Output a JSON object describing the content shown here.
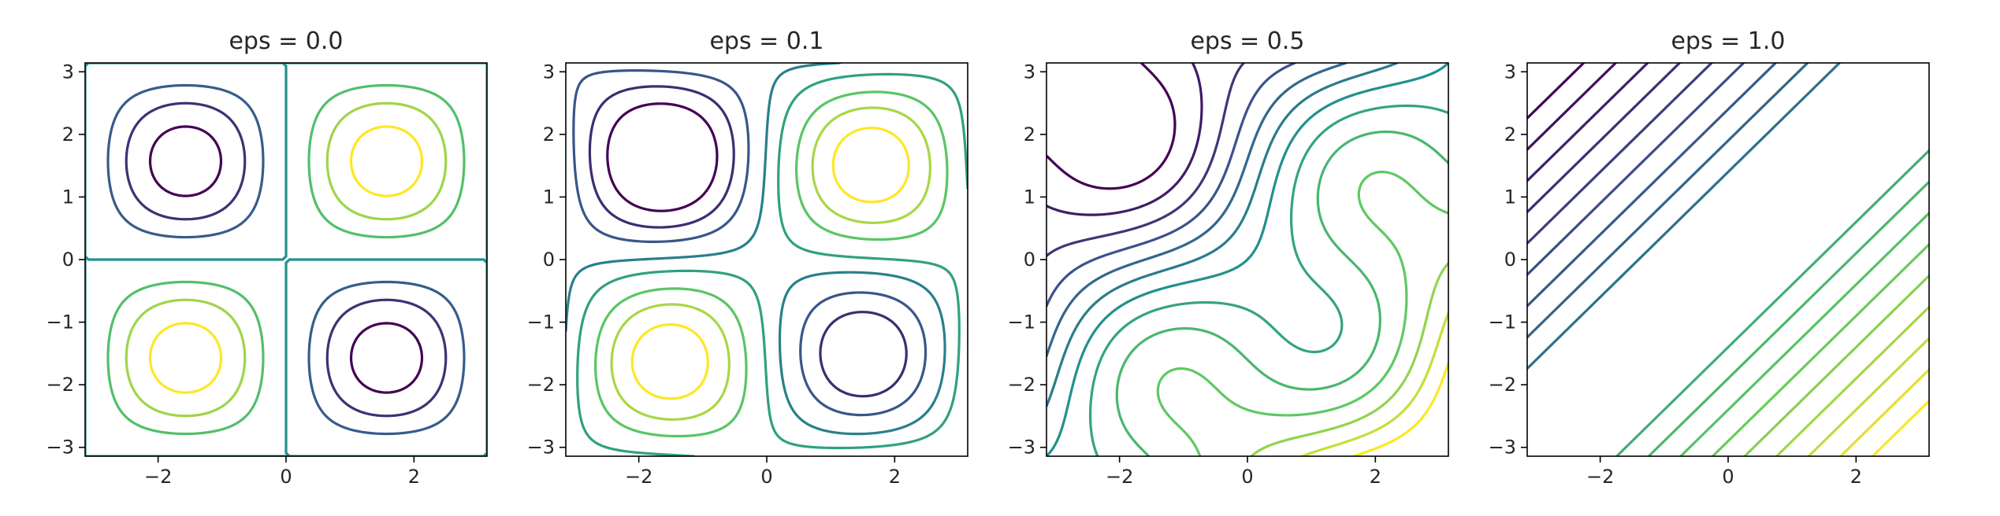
{
  "chart_data": {
    "type": "contour",
    "function": "z = (1 - eps) * sin(x) * sin(y) + eps * (x - y) / 2",
    "colormap": [
      "#440154",
      "#3b528b",
      "#21918c",
      "#5ec962",
      "#fde725"
    ],
    "panels": [
      {
        "title": "eps = 0.0",
        "eps": 0.0,
        "xlim": [
          -3.1416,
          3.1416
        ],
        "ylim": [
          -3.1416,
          3.1416
        ],
        "levels": [
          -0.85,
          -0.6,
          -0.35,
          0.0,
          0.35,
          0.6,
          0.85
        ]
      },
      {
        "title": "eps = 0.1",
        "eps": 0.1,
        "xlim": [
          -3.1416,
          3.1416
        ],
        "ylim": [
          -3.1416,
          3.1416
        ],
        "levels": [
          -0.75,
          -0.55,
          -0.35,
          -0.1,
          0.1,
          0.35,
          0.55,
          0.75
        ]
      },
      {
        "title": "eps = 0.5",
        "eps": 0.5,
        "xlim": [
          -3.1416,
          3.1416
        ],
        "ylim": [
          -3.1416,
          3.1416
        ],
        "levels": [
          -1.2,
          -1.0,
          -0.8,
          -0.6,
          -0.4,
          -0.2,
          0.0,
          0.2,
          0.4,
          0.6,
          0.8,
          1.0,
          1.2
        ]
      },
      {
        "title": "eps = 1.0",
        "eps": 1.0,
        "xlim": [
          -3.1416,
          3.1416
        ],
        "ylim": [
          -3.1416,
          3.1416
        ],
        "levels": [
          -2.7,
          -2.45,
          -2.2,
          -1.95,
          -1.7,
          -1.45,
          -1.2,
          -0.95,
          -0.7,
          0.7,
          0.95,
          1.2,
          1.45,
          1.7,
          1.95,
          2.2,
          2.45,
          2.7
        ]
      }
    ],
    "x_ticks": [
      -2,
      0,
      2
    ],
    "x_tick_labels": [
      "−2",
      "0",
      "2"
    ],
    "y_ticks": [
      -3,
      -2,
      -1,
      0,
      1,
      2,
      3
    ],
    "y_tick_labels": [
      "−3",
      "−2",
      "−1",
      "0",
      "1",
      "2",
      "3"
    ]
  }
}
